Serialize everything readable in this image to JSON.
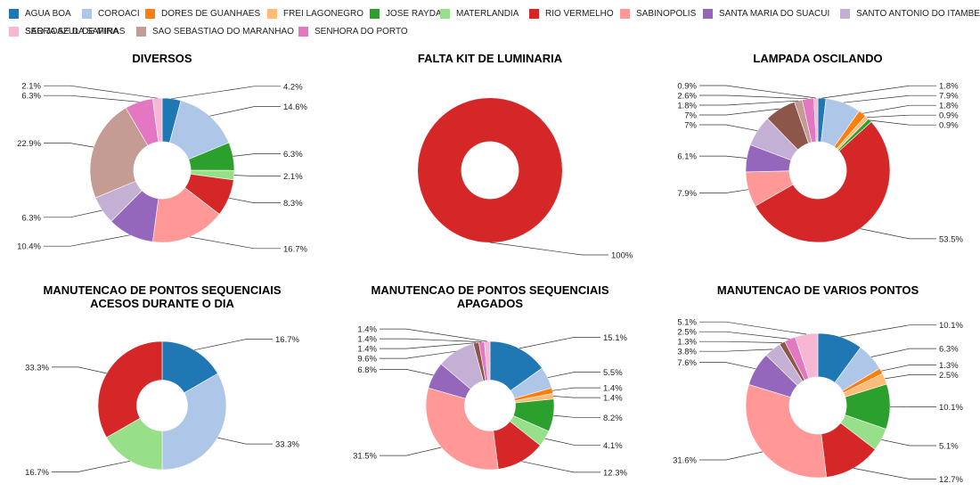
{
  "legend": [
    {
      "name": "AGUA BOA",
      "color": "#1f77b4"
    },
    {
      "name": "COROACI",
      "color": "#aec7e8"
    },
    {
      "name": "DORES DE GUANHAES",
      "color": "#ff7f0e"
    },
    {
      "name": "FREI LAGONEGRO",
      "color": "#ffbb78"
    },
    {
      "name": "JOSE RAYDAN",
      "color": "#2ca02c"
    },
    {
      "name": "MATERLANDIA",
      "color": "#98df8a"
    },
    {
      "name": "RIO VERMELHO",
      "color": "#d62728"
    },
    {
      "name": "SABINOPOLIS",
      "color": "#ff9896"
    },
    {
      "name": "SANTA MARIA DO SUACUI",
      "color": "#9467bd"
    },
    {
      "name": "SANTO ANTONIO DO ITAMBE",
      "color": "#c5b0d5"
    },
    {
      "name": "SAO JOSE DA SAFIRA",
      "color": "#8c564b"
    },
    {
      "name": "SAO SEBASTIAO DO MARANHAO",
      "color": "#c49c94"
    },
    {
      "name": "SENHORA DO PORTO",
      "color": "#e377c2"
    },
    {
      "name": "SERRA AZUL DE MINAS",
      "color": "#f7b6d2"
    }
  ],
  "chart_data": [
    {
      "type": "pie",
      "title": [
        "DIVERSOS"
      ],
      "slices": [
        {
          "category": "AGUA BOA",
          "value": 4.2,
          "label": "4.2%"
        },
        {
          "category": "COROACI",
          "value": 14.6,
          "label": "14.6%"
        },
        {
          "category": "JOSE RAYDAN",
          "value": 6.3,
          "label": "6.3%"
        },
        {
          "category": "MATERLANDIA",
          "value": 2.1,
          "label": "2.1%"
        },
        {
          "category": "RIO VERMELHO",
          "value": 8.3,
          "label": "8.3%"
        },
        {
          "category": "SABINOPOLIS",
          "value": 16.7,
          "label": "16.7%"
        },
        {
          "category": "SANTA MARIA DO SUACUI",
          "value": 10.4,
          "label": "10.4%"
        },
        {
          "category": "SANTO ANTONIO DO ITAMBE",
          "value": 6.3,
          "label": "6.3%"
        },
        {
          "category": "SAO SEBASTIAO DO MARANHAO",
          "value": 22.9,
          "label": "22.9%"
        },
        {
          "category": "SENHORA DO PORTO",
          "value": 6.3,
          "label": "6.3%"
        },
        {
          "category": "SERRA AZUL DE MINAS",
          "value": 2.1,
          "label": "2.1%"
        }
      ]
    },
    {
      "type": "pie",
      "title": [
        "FALTA KIT DE LUMINARIA"
      ],
      "slices": [
        {
          "category": "RIO VERMELHO",
          "value": 100,
          "label": "100%"
        }
      ]
    },
    {
      "type": "pie",
      "title": [
        "LAMPADA OSCILANDO"
      ],
      "slices": [
        {
          "category": "AGUA BOA",
          "value": 1.8,
          "label": "1.8%"
        },
        {
          "category": "COROACI",
          "value": 7.9,
          "label": "7.9%"
        },
        {
          "category": "DORES DE GUANHAES",
          "value": 1.8,
          "label": "1.8%"
        },
        {
          "category": "FREI LAGONEGRO",
          "value": 0.9,
          "label": "0.9%"
        },
        {
          "category": "JOSE RAYDAN",
          "value": 0.9,
          "label": "0.9%"
        },
        {
          "category": "RIO VERMELHO",
          "value": 53.5,
          "label": "53.5%"
        },
        {
          "category": "SABINOPOLIS",
          "value": 7.9,
          "label": "7.9%"
        },
        {
          "category": "SANTA MARIA DO SUACUI",
          "value": 6.1,
          "label": "6.1%"
        },
        {
          "category": "SANTO ANTONIO DO ITAMBE",
          "value": 7,
          "label": "7%"
        },
        {
          "category": "SAO JOSE DA SAFIRA",
          "value": 7,
          "label": "7%"
        },
        {
          "category": "SAO SEBASTIAO DO MARANHAO",
          "value": 1.8,
          "label": "1.8%"
        },
        {
          "category": "SENHORA DO PORTO",
          "value": 2.6,
          "label": "2.6%"
        },
        {
          "category": "SERRA AZUL DE MINAS",
          "value": 0.9,
          "label": "0.9%"
        }
      ]
    },
    {
      "type": "pie",
      "title": [
        "MANUTENCAO DE PONTOS SEQUENCIAIS",
        "ACESOS DURANTE O DIA"
      ],
      "slices": [
        {
          "category": "AGUA BOA",
          "value": 16.7,
          "label": "16.7%"
        },
        {
          "category": "COROACI",
          "value": 33.3,
          "label": "33.3%"
        },
        {
          "category": "MATERLANDIA",
          "value": 16.7,
          "label": "16.7%"
        },
        {
          "category": "RIO VERMELHO",
          "value": 33.3,
          "label": "33.3%"
        }
      ]
    },
    {
      "type": "pie",
      "title": [
        "MANUTENCAO DE PONTOS SEQUENCIAIS",
        "APAGADOS"
      ],
      "slices": [
        {
          "category": "AGUA BOA",
          "value": 15.1,
          "label": "15.1%"
        },
        {
          "category": "COROACI",
          "value": 5.5,
          "label": "5.5%"
        },
        {
          "category": "DORES DE GUANHAES",
          "value": 1.4,
          "label": "1.4%"
        },
        {
          "category": "FREI LAGONEGRO",
          "value": 1.4,
          "label": "1.4%"
        },
        {
          "category": "JOSE RAYDAN",
          "value": 8.2,
          "label": "8.2%"
        },
        {
          "category": "MATERLANDIA",
          "value": 4.1,
          "label": "4.1%"
        },
        {
          "category": "RIO VERMELHO",
          "value": 12.3,
          "label": "12.3%"
        },
        {
          "category": "SABINOPOLIS",
          "value": 31.5,
          "label": "31.5%"
        },
        {
          "category": "SANTA MARIA DO SUACUI",
          "value": 6.8,
          "label": "6.8%"
        },
        {
          "category": "SANTO ANTONIO DO ITAMBE",
          "value": 9.6,
          "label": "9.6%"
        },
        {
          "category": "SAO JOSE DA SAFIRA",
          "value": 1.4,
          "label": "1.4%"
        },
        {
          "category": "SENHORA DO PORTO",
          "value": 1.4,
          "label": "1.4%"
        },
        {
          "category": "SERRA AZUL DE MINAS",
          "value": 1.4,
          "label": "1.4%"
        }
      ]
    },
    {
      "type": "pie",
      "title": [
        "MANUTENCAO DE VARIOS PONTOS"
      ],
      "slices": [
        {
          "category": "AGUA BOA",
          "value": 10.1,
          "label": "10.1%"
        },
        {
          "category": "COROACI",
          "value": 6.3,
          "label": "6.3%"
        },
        {
          "category": "DORES DE GUANHAES",
          "value": 1.3,
          "label": "1.3%"
        },
        {
          "category": "FREI LAGONEGRO",
          "value": 2.5,
          "label": "2.5%"
        },
        {
          "category": "JOSE RAYDAN",
          "value": 10.1,
          "label": "10.1%"
        },
        {
          "category": "MATERLANDIA",
          "value": 5.1,
          "label": "5.1%"
        },
        {
          "category": "RIO VERMELHO",
          "value": 12.7,
          "label": "12.7%"
        },
        {
          "category": "SABINOPOLIS",
          "value": 31.6,
          "label": "31.6%"
        },
        {
          "category": "SANTA MARIA DO SUACUI",
          "value": 7.6,
          "label": "7.6%"
        },
        {
          "category": "SANTO ANTONIO DO ITAMBE",
          "value": 3.8,
          "label": "3.8%"
        },
        {
          "category": "SAO JOSE DA SAFIRA",
          "value": 1.3,
          "label": "1.3%"
        },
        {
          "category": "SENHORA DO PORTO",
          "value": 2.5,
          "label": "2.5%"
        },
        {
          "category": "SERRA AZUL DE MINAS",
          "value": 5.1,
          "label": "5.1%"
        }
      ]
    }
  ]
}
